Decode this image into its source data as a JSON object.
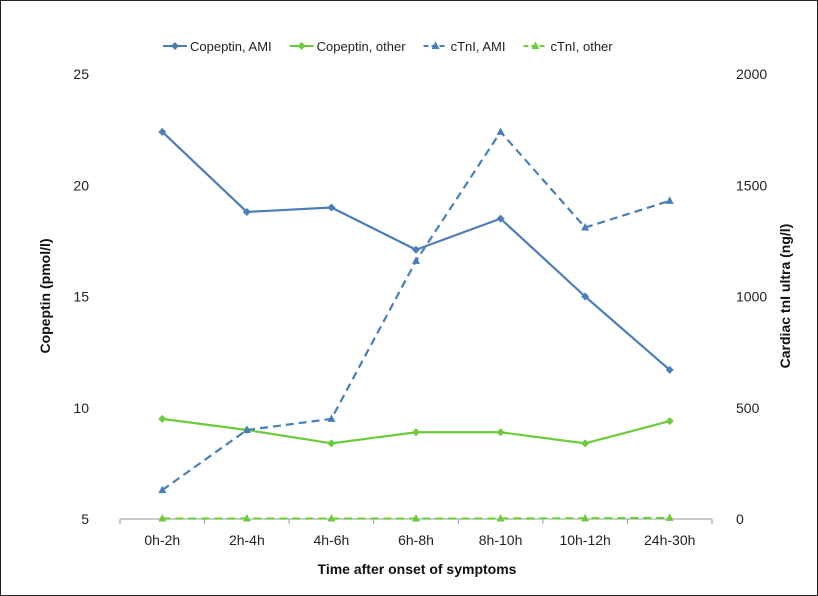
{
  "chart_data": {
    "type": "line",
    "categories": [
      "0h-2h",
      "2h-4h",
      "4h-6h",
      "6h-8h",
      "8h-10h",
      "10h-12h",
      "24h-30h"
    ],
    "xlabel": "Time after onset of symptoms",
    "ylabel": "Copeptin (pmol/l)",
    "ylabel_right": "Cardiac tnI ultra (ng/l)",
    "ylim": [
      5,
      25
    ],
    "ylim_right": [
      0,
      2000
    ],
    "yticks": [
      5,
      10,
      15,
      20,
      25
    ],
    "yticks_right": [
      0,
      500,
      1000,
      1500,
      2000
    ],
    "grid": false,
    "legend_position": "top",
    "series": [
      {
        "name": "Copeptin, AMI",
        "axis": "left",
        "color": "#4A7EBB",
        "dash": false,
        "marker": "diamond",
        "values": [
          22.4,
          18.8,
          19.0,
          17.1,
          18.5,
          15.0,
          11.7
        ]
      },
      {
        "name": "Copeptin, other",
        "axis": "left",
        "color": "#6CCB3A",
        "dash": false,
        "marker": "diamond",
        "values": [
          9.5,
          9.0,
          8.4,
          8.9,
          8.9,
          8.4,
          9.4
        ]
      },
      {
        "name": "cTnI, AMI",
        "axis": "right",
        "color": "#4A7EBB",
        "dash": true,
        "marker": "triangle",
        "values": [
          130,
          400,
          450,
          1160,
          1740,
          1310,
          1430
        ]
      },
      {
        "name": "cTnI, other",
        "axis": "right",
        "color": "#6CCB3A",
        "dash": true,
        "marker": "triangle",
        "values": [
          2,
          2,
          2,
          2,
          2,
          3,
          5
        ]
      }
    ]
  }
}
